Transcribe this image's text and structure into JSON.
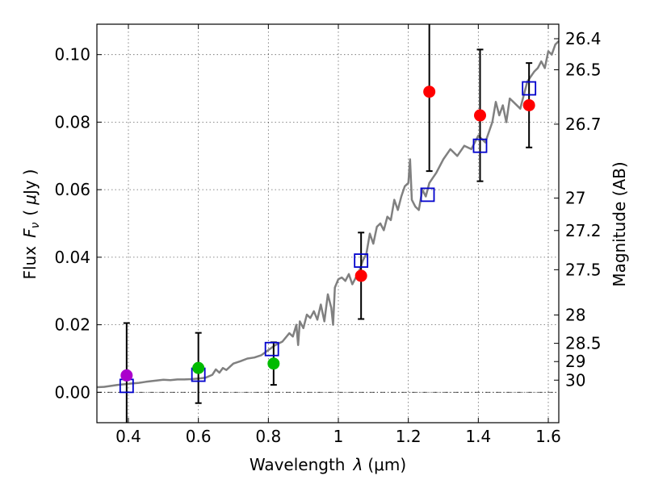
{
  "chart_data": {
    "type": "scatter",
    "title": "",
    "xlabel_main": "Wavelength",
    "xlabel_lambda": "λ",
    "xlabel_unit": "(μm)",
    "ylabel_main": "Flux",
    "ylabel_symbol": "F",
    "ylabel_sub": "ν",
    "ylabel_open": "(",
    "ylabel_mu": "μ",
    "ylabel_unit": "Jy",
    "ylabel_close": ")",
    "y2label": "Magnitude (AB)",
    "xlim": [
      0.31,
      1.63
    ],
    "ylim": [
      -0.009,
      0.109
    ],
    "grid": true,
    "x_ticks": [
      {
        "value": 0.4,
        "label": "0.4"
      },
      {
        "value": 0.6,
        "label": "0.6"
      },
      {
        "value": 0.8,
        "label": "0.8"
      },
      {
        "value": 1.0,
        "label": "1"
      },
      {
        "value": 1.2,
        "label": "1.2"
      },
      {
        "value": 1.4,
        "label": "1.4"
      },
      {
        "value": 1.6,
        "label": "1.6"
      }
    ],
    "y_ticks": [
      {
        "value": 0.0,
        "label": "0.00"
      },
      {
        "value": 0.02,
        "label": "0.02"
      },
      {
        "value": 0.04,
        "label": "0.04"
      },
      {
        "value": 0.06,
        "label": "0.06"
      },
      {
        "value": 0.08,
        "label": "0.08"
      },
      {
        "value": 0.1,
        "label": "0.10"
      }
    ],
    "mag_ticks": [
      {
        "flux": 0.1047,
        "label": "26.4"
      },
      {
        "flux": 0.0955,
        "label": "26.5"
      },
      {
        "flux": 0.0794,
        "label": "26.7"
      },
      {
        "flux": 0.0575,
        "label": "27"
      },
      {
        "flux": 0.0479,
        "label": "27.2"
      },
      {
        "flux": 0.0363,
        "label": "27.5"
      },
      {
        "flux": 0.0229,
        "label": "28"
      },
      {
        "flux": 0.0145,
        "label": "28.5"
      },
      {
        "flux": 0.0091,
        "label": "29"
      },
      {
        "flux": 0.0036,
        "label": "30"
      }
    ],
    "model_spectrum": {
      "name": "SED model",
      "color": "#808080",
      "x": [
        0.31,
        0.33,
        0.35,
        0.37,
        0.39,
        0.41,
        0.43,
        0.45,
        0.48,
        0.5,
        0.52,
        0.54,
        0.56,
        0.58,
        0.6,
        0.62,
        0.64,
        0.65,
        0.66,
        0.67,
        0.68,
        0.7,
        0.72,
        0.74,
        0.76,
        0.78,
        0.8,
        0.82,
        0.84,
        0.86,
        0.87,
        0.88,
        0.885,
        0.89,
        0.9,
        0.91,
        0.92,
        0.93,
        0.94,
        0.95,
        0.96,
        0.97,
        0.98,
        0.985,
        0.99,
        1.0,
        1.01,
        1.02,
        1.03,
        1.04,
        1.06,
        1.07,
        1.08,
        1.09,
        1.1,
        1.11,
        1.12,
        1.13,
        1.14,
        1.15,
        1.16,
        1.17,
        1.18,
        1.19,
        1.2,
        1.205,
        1.21,
        1.22,
        1.23,
        1.24,
        1.25,
        1.26,
        1.28,
        1.3,
        1.32,
        1.34,
        1.36,
        1.38,
        1.4,
        1.42,
        1.44,
        1.45,
        1.46,
        1.47,
        1.48,
        1.49,
        1.5,
        1.52,
        1.54,
        1.56,
        1.57,
        1.58,
        1.59,
        1.6,
        1.61,
        1.62,
        1.63
      ],
      "y": [
        0.0015,
        0.0016,
        0.0019,
        0.0022,
        0.0024,
        0.0026,
        0.0028,
        0.0031,
        0.0035,
        0.0037,
        0.0036,
        0.0038,
        0.0038,
        0.0039,
        0.0041,
        0.0043,
        0.0052,
        0.0068,
        0.0058,
        0.0072,
        0.0066,
        0.0085,
        0.0092,
        0.01,
        0.0103,
        0.011,
        0.0125,
        0.014,
        0.015,
        0.0175,
        0.0165,
        0.02,
        0.014,
        0.021,
        0.019,
        0.023,
        0.022,
        0.024,
        0.0215,
        0.026,
        0.021,
        0.029,
        0.025,
        0.02,
        0.031,
        0.0335,
        0.034,
        0.033,
        0.035,
        0.032,
        0.036,
        0.039,
        0.041,
        0.047,
        0.044,
        0.049,
        0.05,
        0.048,
        0.052,
        0.051,
        0.057,
        0.054,
        0.058,
        0.061,
        0.062,
        0.069,
        0.057,
        0.055,
        0.054,
        0.06,
        0.058,
        0.062,
        0.065,
        0.069,
        0.072,
        0.07,
        0.073,
        0.072,
        0.076,
        0.074,
        0.08,
        0.086,
        0.082,
        0.085,
        0.08,
        0.087,
        0.086,
        0.084,
        0.092,
        0.095,
        0.096,
        0.098,
        0.096,
        0.101,
        0.1,
        0.103,
        0.104
      ]
    },
    "series": [
      {
        "name": "model bandpass flux",
        "marker": "open-square",
        "color": "#0000cc",
        "x": [
          0.395,
          0.6,
          0.81,
          1.065,
          1.255,
          1.405,
          1.545
        ],
        "y": [
          0.0019,
          0.0052,
          0.0128,
          0.039,
          0.0585,
          0.073,
          0.09
        ]
      },
      {
        "name": "observed flux (purple)",
        "marker": "circle",
        "color": "#aa00cc",
        "x": [
          0.395
        ],
        "y": [
          0.005
        ],
        "yerr": [
          0.0155
        ]
      },
      {
        "name": "observed flux (green)",
        "marker": "circle",
        "color": "#00bb00",
        "x": [
          0.6,
          0.815
        ],
        "y": [
          0.0072,
          0.0085
        ],
        "yerr": [
          0.0104,
          0.0063
        ]
      },
      {
        "name": "observed flux (red)",
        "marker": "circle",
        "color": "#ff0000",
        "x": [
          1.065,
          1.26,
          1.405,
          1.545
        ],
        "y": [
          0.0345,
          0.089,
          0.082,
          0.085
        ],
        "yerr": [
          0.0128,
          0.0235,
          0.0195,
          0.0125
        ]
      }
    ]
  }
}
